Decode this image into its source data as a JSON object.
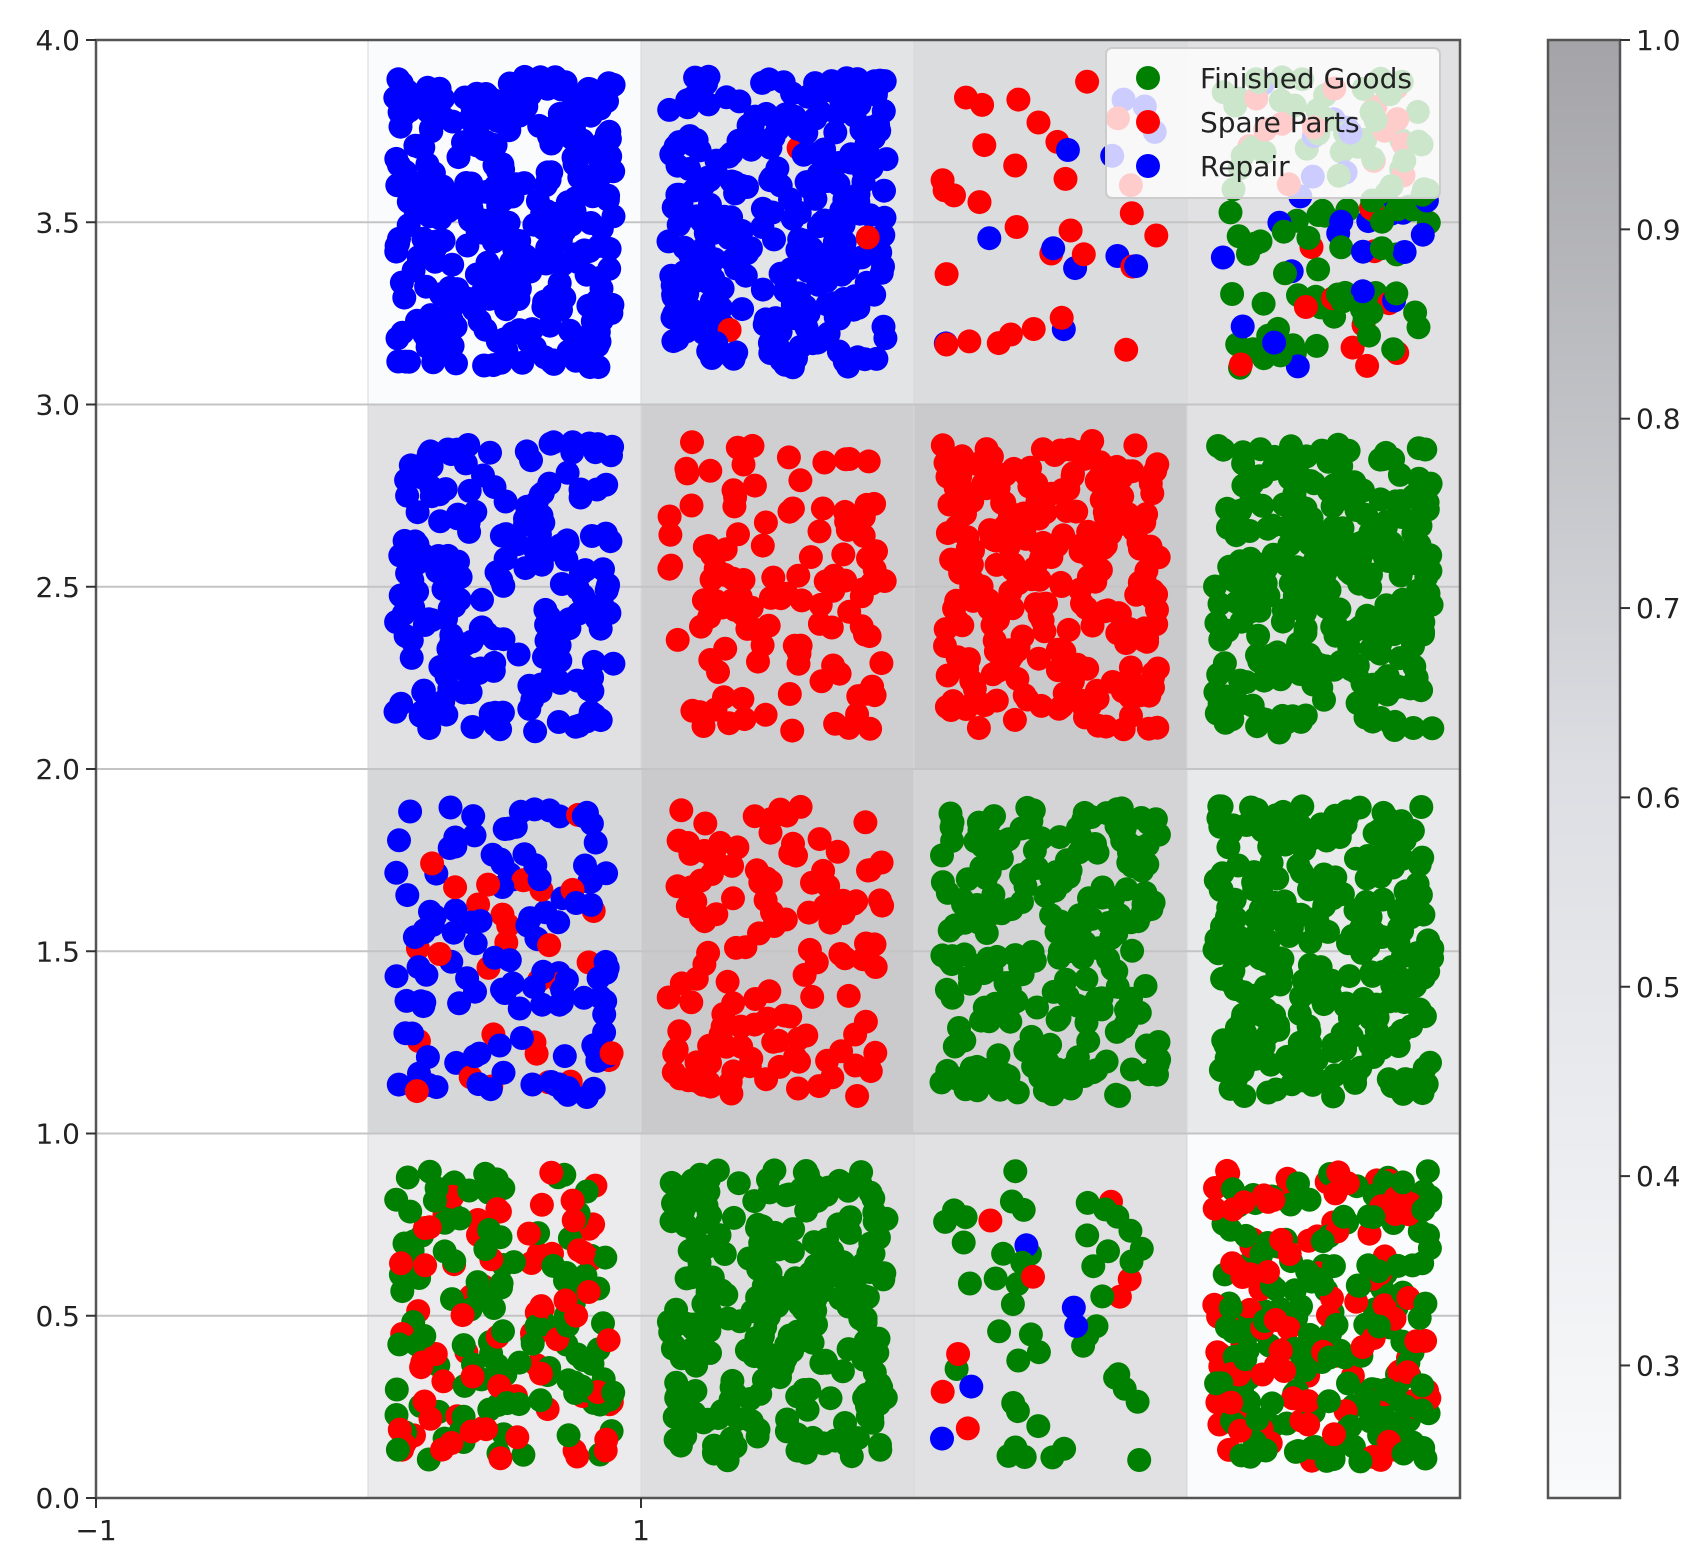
{
  "chart_data": {
    "type": "scatter",
    "title": "",
    "xlabel": "",
    "ylabel": "",
    "xlim": [
      -1,
      4
    ],
    "ylim": [
      0,
      4
    ],
    "x_ticks": [
      "−1",
      "1"
    ],
    "y_ticks": [
      "0.0",
      "0.5",
      "1.0",
      "1.5",
      "2.0",
      "2.5",
      "3.0",
      "3.5",
      "4.0"
    ],
    "grid": "horizontal",
    "legend_position": "top-right",
    "series": [
      {
        "name": "Finished Goods",
        "color": "#008000"
      },
      {
        "name": "Spare Parts",
        "color": "#ff0000"
      },
      {
        "name": "Repair",
        "color": "#0000ff"
      }
    ],
    "colorbar": {
      "range": [
        0.23,
        1.0
      ],
      "ticks": [
        "0.3",
        "0.4",
        "0.5",
        "0.6",
        "0.7",
        "0.8",
        "0.9",
        "1.0"
      ],
      "colormap": "light-to-dark gray"
    },
    "cells": [
      {
        "x": [
          0,
          1
        ],
        "y": [
          0,
          1
        ],
        "shade": 0.3,
        "points": {
          "Finished Goods": 120,
          "Spare Parts": 80,
          "Repair": 0
        }
      },
      {
        "x": [
          1,
          2
        ],
        "y": [
          0,
          1
        ],
        "shade": 0.55,
        "points": {
          "Finished Goods": 260,
          "Spare Parts": 0,
          "Repair": 0
        }
      },
      {
        "x": [
          2,
          3
        ],
        "y": [
          0,
          1
        ],
        "shade": 0.5,
        "points": {
          "Finished Goods": 45,
          "Spare Parts": 8,
          "Repair": 5
        }
      },
      {
        "x": [
          3,
          4
        ],
        "y": [
          0,
          1
        ],
        "shade": 0.0,
        "points": {
          "Finished Goods": 170,
          "Spare Parts": 110,
          "Repair": 0
        }
      },
      {
        "x": [
          0,
          1
        ],
        "y": [
          1,
          2
        ],
        "shade": 0.7,
        "points": {
          "Finished Goods": 0,
          "Spare Parts": 30,
          "Repair": 120
        }
      },
      {
        "x": [
          1,
          2
        ],
        "y": [
          1,
          2
        ],
        "shade": 0.95,
        "points": {
          "Finished Goods": 0,
          "Spare Parts": 130,
          "Repair": 0
        }
      },
      {
        "x": [
          2,
          3
        ],
        "y": [
          1,
          2
        ],
        "shade": 0.75,
        "points": {
          "Finished Goods": 240,
          "Spare Parts": 0,
          "Repair": 0
        }
      },
      {
        "x": [
          3,
          4
        ],
        "y": [
          1,
          2
        ],
        "shade": 0.35,
        "points": {
          "Finished Goods": 300,
          "Spare Parts": 0,
          "Repair": 0
        }
      },
      {
        "x": [
          0,
          1
        ],
        "y": [
          2,
          3
        ],
        "shade": 0.5,
        "points": {
          "Finished Goods": 0,
          "Spare Parts": 0,
          "Repair": 210
        }
      },
      {
        "x": [
          1,
          2
        ],
        "y": [
          2,
          3
        ],
        "shade": 0.85,
        "points": {
          "Finished Goods": 0,
          "Spare Parts": 120,
          "Repair": 0
        }
      },
      {
        "x": [
          2,
          3
        ],
        "y": [
          2,
          3
        ],
        "shade": 0.95,
        "points": {
          "Finished Goods": 0,
          "Spare Parts": 260,
          "Repair": 0
        }
      },
      {
        "x": [
          3,
          4
        ],
        "y": [
          2,
          3
        ],
        "shade": 0.5,
        "points": {
          "Finished Goods": 300,
          "Spare Parts": 0,
          "Repair": 0
        }
      },
      {
        "x": [
          0,
          1
        ],
        "y": [
          3,
          4
        ],
        "shade": 0.0,
        "points": {
          "Finished Goods": 0,
          "Spare Parts": 0,
          "Repair": 320
        }
      },
      {
        "x": [
          1,
          2
        ],
        "y": [
          3,
          4
        ],
        "shade": 0.45,
        "points": {
          "Finished Goods": 0,
          "Spare Parts": 3,
          "Repair": 280
        }
      },
      {
        "x": [
          2,
          3
        ],
        "y": [
          3,
          4
        ],
        "shade": 0.6,
        "points": {
          "Finished Goods": 0,
          "Spare Parts": 30,
          "Repair": 12
        }
      },
      {
        "x": [
          3,
          4
        ],
        "y": [
          3,
          4
        ],
        "shade": 0.5,
        "points": {
          "Finished Goods": 100,
          "Spare Parts": 25,
          "Repair": 25
        }
      }
    ]
  }
}
